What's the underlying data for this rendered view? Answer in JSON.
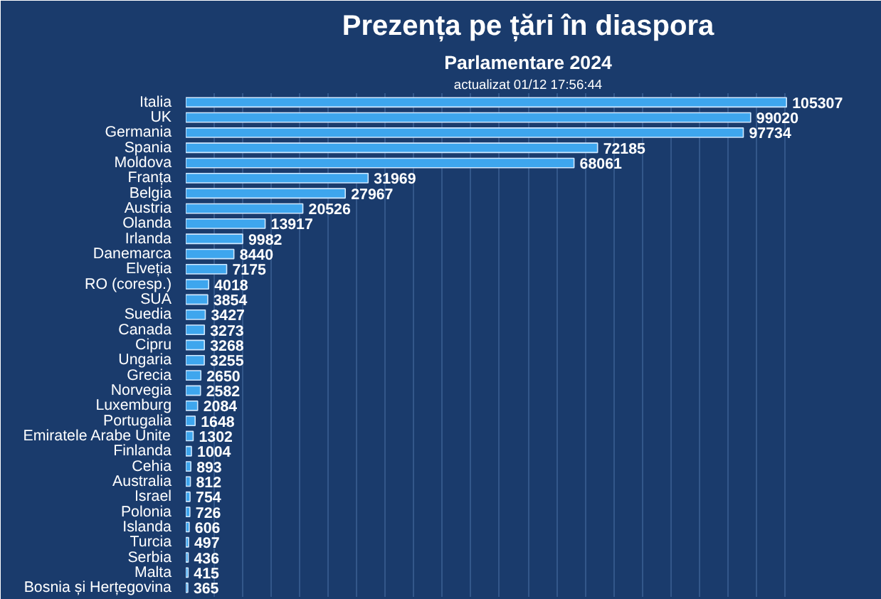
{
  "chart_data": {
    "type": "bar",
    "orientation": "horizontal",
    "title": "Prezența pe țări în diaspora",
    "subtitle": "Parlamentare 2024",
    "annotations": [
      "actualizat 01/12 17:56:44"
    ],
    "categories": [
      "Italia",
      "UK",
      "Germania",
      "Spania",
      "Moldova",
      "Franța",
      "Belgia",
      "Austria",
      "Olanda",
      "Irlanda",
      "Danemarca",
      "Elveția",
      "RO (coresp.)",
      "SUA",
      "Suedia",
      "Canada",
      "Cipru",
      "Ungaria",
      "Grecia",
      "Norvegia",
      "Luxemburg",
      "Portugalia",
      "Emiratele Arabe Unite",
      "Finlanda",
      "Cehia",
      "Australia",
      "Israel",
      "Polonia",
      "Islanda",
      "Turcia",
      "Serbia",
      "Malta",
      "Bosnia și Herțegovina"
    ],
    "values": [
      105307,
      99020,
      97734,
      72185,
      68061,
      31969,
      27967,
      20526,
      13917,
      9982,
      8440,
      7175,
      4018,
      3854,
      3427,
      3273,
      3268,
      3255,
      2650,
      2582,
      2084,
      1648,
      1302,
      1004,
      893,
      812,
      754,
      726,
      606,
      497,
      436,
      415,
      365
    ],
    "color": "#3ea6ee",
    "data_labels": true,
    "grid": "x",
    "tick_labels": "y",
    "xlim": [
      0,
      120000
    ],
    "xticks": [
      {
        "value": 0,
        "label": null
      },
      {
        "value": 5000,
        "label": null
      },
      {
        "value": 10000,
        "label": null
      },
      {
        "value": 15000,
        "label": null
      },
      {
        "value": 20000,
        "label": null
      },
      {
        "value": 25000,
        "label": null
      },
      {
        "value": 30000,
        "label": null
      },
      {
        "value": 35000,
        "label": null
      },
      {
        "value": 40000,
        "label": null
      },
      {
        "value": 45000,
        "label": null
      },
      {
        "value": 50000,
        "label": null
      },
      {
        "value": 55000,
        "label": null
      },
      {
        "value": 60000,
        "label": null
      },
      {
        "value": 65000,
        "label": null
      },
      {
        "value": 70000,
        "label": null
      },
      {
        "value": 75000,
        "label": null
      },
      {
        "value": 80000,
        "label": null
      },
      {
        "value": 85000,
        "label": null
      },
      {
        "value": 90000,
        "label": null
      },
      {
        "value": 95000,
        "label": null
      },
      {
        "value": 100000,
        "label": null
      },
      {
        "value": 105000,
        "label": null
      }
    ]
  }
}
